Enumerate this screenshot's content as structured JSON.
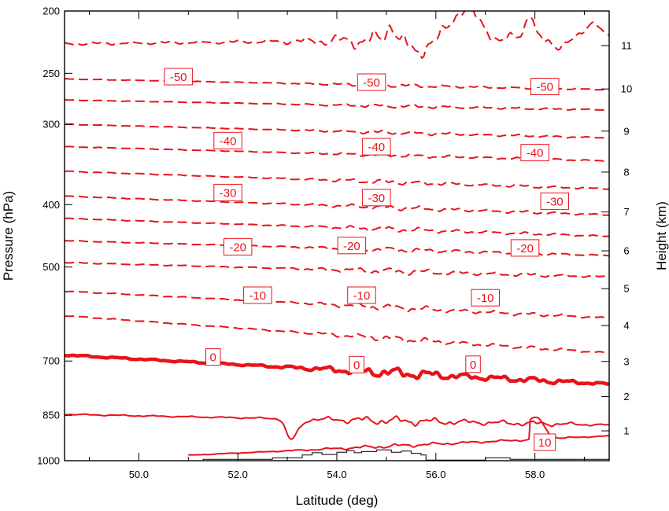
{
  "colors": {
    "contour": "#e8141c",
    "terrain": "#000000",
    "label_box_fill": "#ffffff"
  },
  "chart_data": {
    "type": "contour",
    "xlabel": "Latitude (deg)",
    "ylabel_left": "Pressure (hPa)",
    "ylabel_right": "Height (km)",
    "xlim": [
      48.5,
      59.5
    ],
    "ylim_pressure": [
      1000,
      200
    ],
    "x_ticks": [
      50,
      52,
      54,
      56,
      58
    ],
    "x_tick_labels": [
      "50.0",
      "52.0",
      "54.0",
      "56.0",
      "58.0"
    ],
    "pressure_ticks": [
      200,
      250,
      300,
      400,
      500,
      700,
      850,
      1000
    ],
    "pressure_tick_labels": [
      "200",
      "250",
      "300",
      "400",
      "500",
      "700",
      "850",
      "1000"
    ],
    "height_ticks_km": [
      1,
      2,
      3,
      4,
      5,
      6,
      7,
      8,
      9,
      10,
      11
    ],
    "height_tick_labels": [
      "1",
      "2",
      "3",
      "4",
      "5",
      "6",
      "7",
      "8",
      "9",
      "10",
      "11"
    ],
    "contour_interval_C": 5,
    "contours": [
      {
        "level": 10,
        "style": "solid",
        "start_p": 1000,
        "end_p": 915,
        "lat_start": 51.0,
        "lat_end": 59.5,
        "waviness": 0.3
      },
      {
        "level": 5,
        "style": "solid",
        "start_p": 847,
        "end_p": 880,
        "waviness": 0.7
      },
      {
        "level": 0,
        "style": "bold",
        "start_p": 685,
        "end_p": 760,
        "waviness": 0.8
      },
      {
        "level": -5,
        "style": "dashed",
        "start_p": 595,
        "end_p": 680,
        "waviness": 0.5
      },
      {
        "level": -10,
        "style": "dashed",
        "start_p": 545,
        "end_p": 600,
        "waviness": 0.5
      },
      {
        "level": -15,
        "style": "dashed",
        "start_p": 492,
        "end_p": 518,
        "waviness": 0.5
      },
      {
        "level": -20,
        "style": "dashed",
        "start_p": 455,
        "end_p": 480,
        "waviness": 0.4
      },
      {
        "level": -25,
        "style": "dashed",
        "start_p": 420,
        "end_p": 448,
        "waviness": 0.4
      },
      {
        "level": -30,
        "style": "dashed",
        "start_p": 388,
        "end_p": 415,
        "waviness": 0.4
      },
      {
        "level": -35,
        "style": "dashed",
        "start_p": 355,
        "end_p": 378,
        "waviness": 0.4
      },
      {
        "level": -40,
        "style": "dashed",
        "start_p": 325,
        "end_p": 342,
        "waviness": 0.3
      },
      {
        "level": -45,
        "style": "dashed",
        "start_p": 300,
        "end_p": 315,
        "waviness": 0.3
      },
      {
        "level": -50,
        "style": "dashed",
        "start_p": 275,
        "end_p": 285,
        "waviness": 0.3
      },
      {
        "level": -55,
        "style": "dashed",
        "start_p": 255,
        "end_p": 265,
        "waviness": 0.3
      },
      {
        "level": -60,
        "style": "dashed",
        "start_p": 225,
        "end_p": 220,
        "waviness": 1.5
      }
    ],
    "contour_labels": [
      {
        "text": "-50",
        "lat": 50.8,
        "p": 253
      },
      {
        "text": "-50",
        "lat": 54.7,
        "p": 258
      },
      {
        "text": "-50",
        "lat": 58.2,
        "p": 262
      },
      {
        "text": "-40",
        "lat": 51.8,
        "p": 318
      },
      {
        "text": "-40",
        "lat": 54.8,
        "p": 325
      },
      {
        "text": "-40",
        "lat": 58.0,
        "p": 332
      },
      {
        "text": "-30",
        "lat": 51.8,
        "p": 383
      },
      {
        "text": "-30",
        "lat": 54.8,
        "p": 390
      },
      {
        "text": "-30",
        "lat": 58.4,
        "p": 395
      },
      {
        "text": "-20",
        "lat": 52.0,
        "p": 465
      },
      {
        "text": "-20",
        "lat": 54.3,
        "p": 463
      },
      {
        "text": "-20",
        "lat": 57.8,
        "p": 467
      },
      {
        "text": "-10",
        "lat": 52.4,
        "p": 553
      },
      {
        "text": "-10",
        "lat": 54.5,
        "p": 553
      },
      {
        "text": "-10",
        "lat": 57.0,
        "p": 558
      },
      {
        "text": "0",
        "lat": 51.5,
        "p": 690
      },
      {
        "text": "0",
        "lat": 54.4,
        "p": 709
      },
      {
        "text": "0",
        "lat": 56.75,
        "p": 708
      },
      {
        "text": "10",
        "lat": 58.2,
        "p": 936
      }
    ],
    "terrain": [
      [
        48.5,
        1000
      ],
      [
        51.2,
        1000
      ],
      [
        51.3,
        995
      ],
      [
        52.6,
        995
      ],
      [
        52.7,
        990
      ],
      [
        53.2,
        990
      ],
      [
        53.3,
        980
      ],
      [
        53.5,
        972
      ],
      [
        53.7,
        978
      ],
      [
        54.0,
        970
      ],
      [
        54.2,
        965
      ],
      [
        54.35,
        972
      ],
      [
        54.5,
        968
      ],
      [
        54.8,
        962
      ],
      [
        55.1,
        970
      ],
      [
        55.3,
        966
      ],
      [
        55.5,
        974
      ],
      [
        55.7,
        980
      ],
      [
        55.8,
        998
      ],
      [
        56.9,
        998
      ],
      [
        57.0,
        990
      ],
      [
        57.3,
        990
      ],
      [
        57.5,
        995
      ],
      [
        59.5,
        995
      ]
    ]
  }
}
